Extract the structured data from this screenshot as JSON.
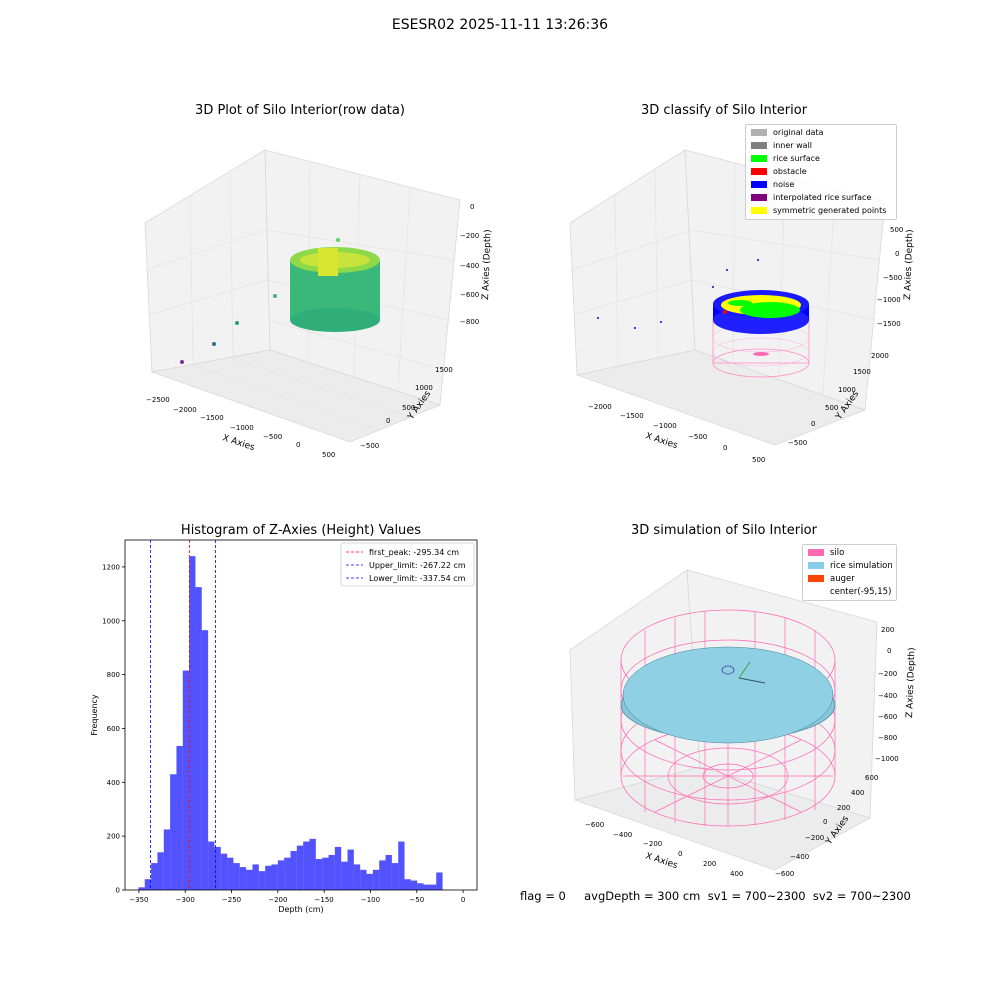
{
  "figure": {
    "suptitle": "ESESR02 2025-11-11 13:26:36",
    "footer": "flag = 0     avgDepth = 300 cm  sv1 = 700~2300  sv2 = 700~2300"
  },
  "panels": {
    "raw": {
      "title": "3D Plot of Silo Interior(row data)",
      "xlabel": "X Axies",
      "ylabel": "Y Axies",
      "zlabel": "Z Axies (Depth)",
      "xticks": [
        "−2500",
        "−2000",
        "−1500",
        "−1000",
        "−500",
        "0",
        "500"
      ],
      "yticks": [
        "−500",
        "0",
        "500",
        "1000",
        "1500"
      ],
      "zticks": [
        "0",
        "−200",
        "−400",
        "−600",
        "−800"
      ]
    },
    "classify": {
      "title": "3D classify of Silo Interior",
      "xlabel": "X Axies",
      "ylabel": "Y Axies",
      "zlabel": "Z Axies (Depth)",
      "xticks": [
        "−2000",
        "−1500",
        "−1000",
        "−500",
        "0",
        "500"
      ],
      "yticks": [
        "−500",
        "0",
        "500",
        "1000",
        "1500",
        "2000"
      ],
      "zticks": [
        "500",
        "0",
        "−500",
        "−1000",
        "−1500"
      ],
      "legend": [
        {
          "label": "original data",
          "color": "#b0b0b0"
        },
        {
          "label": "inner wall",
          "color": "#808080"
        },
        {
          "label": "rice surface",
          "color": "#00ff00"
        },
        {
          "label": "obstacle",
          "color": "#ff0000"
        },
        {
          "label": "noise",
          "color": "#0000ff"
        },
        {
          "label": "interpolated rice surface",
          "color": "#800080"
        },
        {
          "label": "symmetric generated points",
          "color": "#ffff00"
        }
      ]
    },
    "simulation": {
      "title": "3D simulation of Silo Interior",
      "xlabel": "X Axies",
      "ylabel": "Y Axies",
      "zlabel": "Z Axies (Depth)",
      "xticks": [
        "−600",
        "−400",
        "−200",
        "0",
        "200",
        "400"
      ],
      "yticks": [
        "−600",
        "−400",
        "−200",
        "0",
        "200",
        "400",
        "600"
      ],
      "zticks": [
        "200",
        "0",
        "−200",
        "−400",
        "−600",
        "−800",
        "−1000"
      ],
      "legend": [
        {
          "label": "silo",
          "color": "#ff69b4",
          "swatch": true
        },
        {
          "label": "rice simulation",
          "color": "#87ceeb",
          "swatch": true
        },
        {
          "label": "auger",
          "color": "#ff4500",
          "swatch": true
        },
        {
          "label": "center(-95,15)",
          "color": "#ffffff",
          "swatch": false
        }
      ]
    }
  },
  "chart_data": {
    "type": "bar",
    "title": "Histogram of Z-Axies (Height) Values",
    "xlabel": "Depth (cm)",
    "ylabel": "Frequency",
    "xlim": [
      -365,
      15
    ],
    "ylim": [
      0,
      1300
    ],
    "xticks": [
      -350,
      -300,
      -250,
      -200,
      -150,
      -100,
      -50,
      0
    ],
    "yticks": [
      0,
      200,
      400,
      600,
      800,
      1000,
      1200
    ],
    "bar_color": "#0000ff",
    "bins": {
      "start": -350.5,
      "width": 6.84,
      "values": [
        10,
        40,
        100,
        140,
        225,
        430,
        535,
        815,
        1240,
        1125,
        965,
        180,
        160,
        135,
        120,
        100,
        85,
        75,
        95,
        70,
        90,
        95,
        110,
        120,
        145,
        165,
        180,
        190,
        115,
        120,
        130,
        160,
        105,
        150,
        95,
        75,
        60,
        75,
        110,
        130,
        100,
        180,
        40,
        35,
        25,
        20,
        20,
        65
      ]
    },
    "vlines": [
      {
        "label": "first_peak: -295.34 cm",
        "x": -295.34,
        "color": "#ff0000"
      },
      {
        "label": "Upper_limit: -267.22 cm",
        "x": -267.22,
        "color": "#0000ff"
      },
      {
        "label": "Lower_limit: -337.54 cm",
        "x": -337.54,
        "color": "#0000ff"
      }
    ],
    "legend_position": "top-right"
  }
}
